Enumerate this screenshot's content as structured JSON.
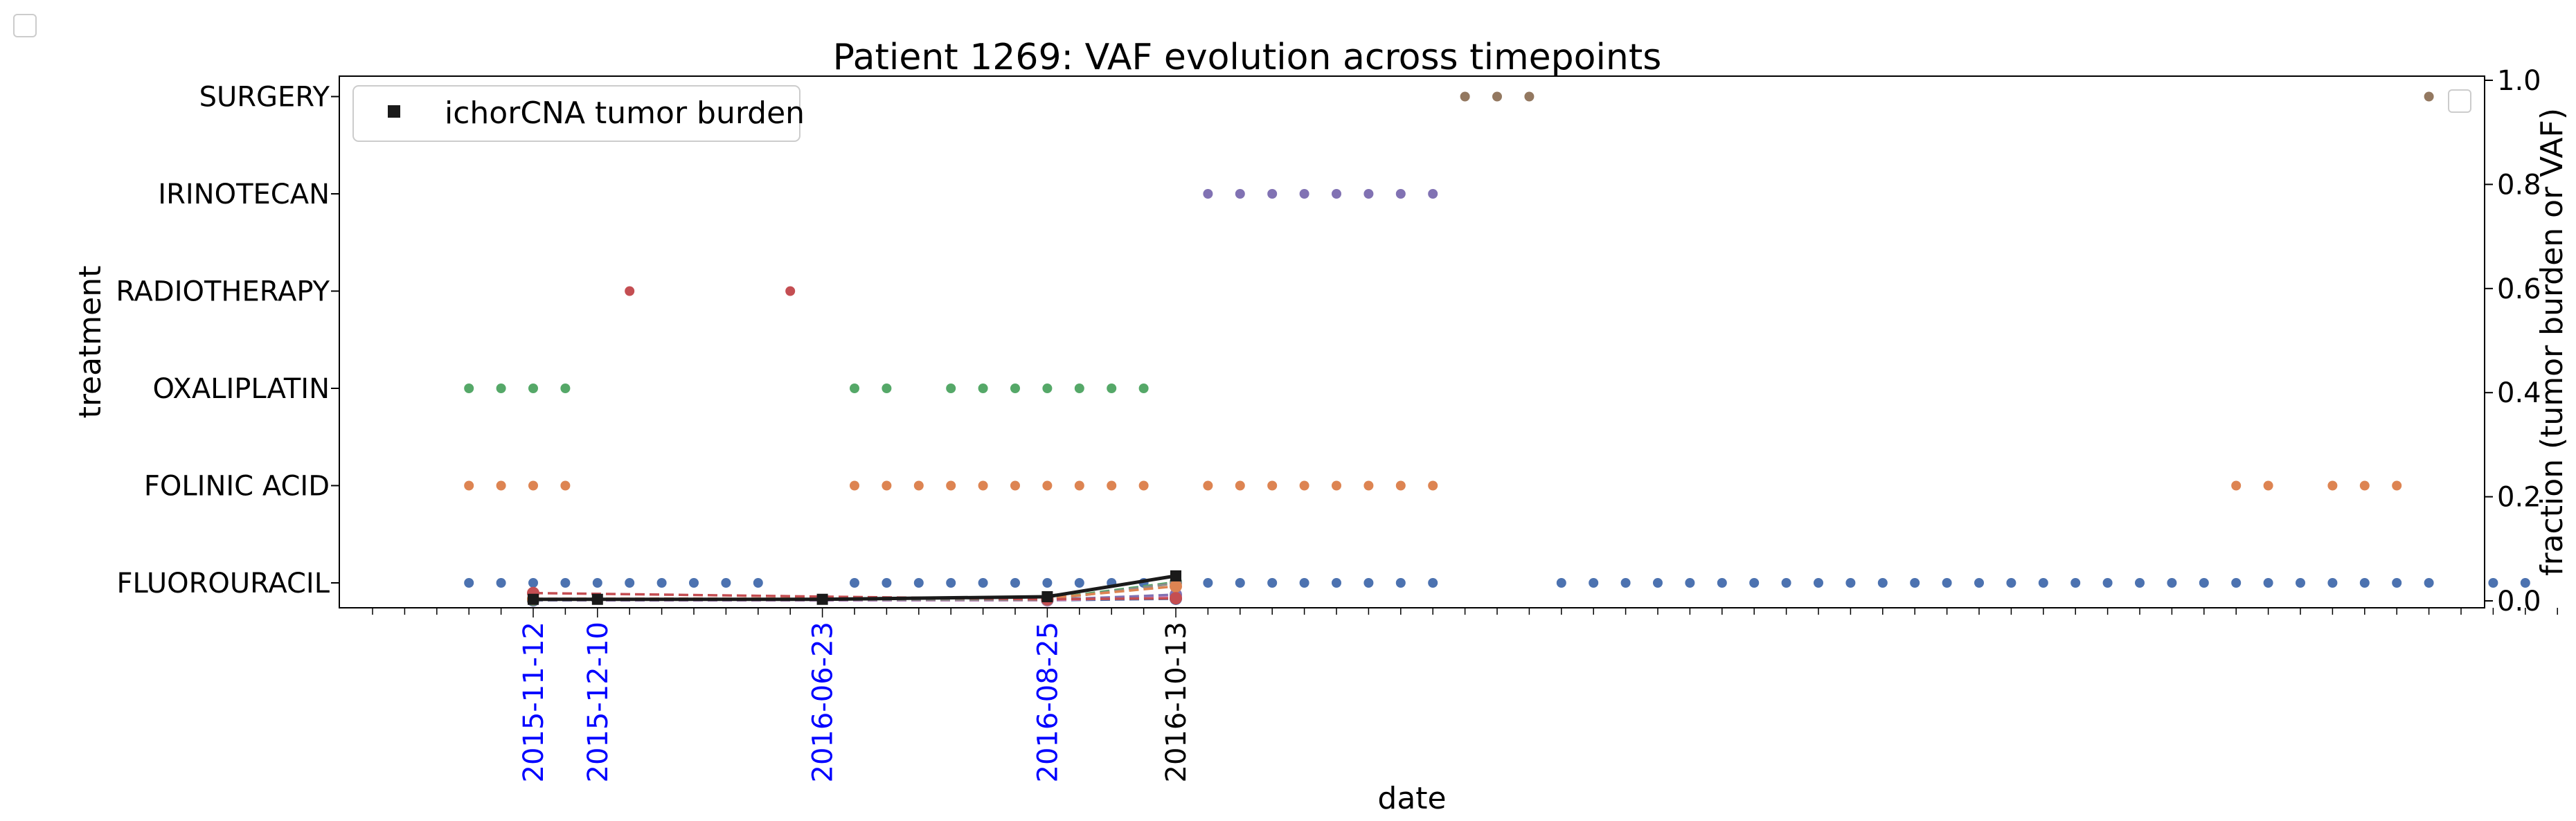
{
  "chart_data": {
    "type": "scatter",
    "title": "Patient 1269: VAF evolution across timepoints",
    "xlabel": "date",
    "ylabel_left": "treatment",
    "ylabel_right": "fraction (tumor burden or VAF)",
    "treatments": [
      "FLUOROURACIL",
      "FOLINIC ACID",
      "OXALIPLATIN",
      "RADIOTHERAPY",
      "IRINOTECAN",
      "SURGERY"
    ],
    "right_axis": {
      "ylim": [
        0.0,
        1.0
      ],
      "ticks": [
        "0.0",
        "0.2",
        "0.4",
        "0.6",
        "0.8",
        "1.0"
      ]
    },
    "x_tick_count": 69,
    "date_ticks": [
      {
        "label": "2015-11-12",
        "slot": 5,
        "color": "#0000ff"
      },
      {
        "label": "2015-12-10",
        "slot": 7,
        "color": "#0000ff"
      },
      {
        "label": "2016-06-23",
        "slot": 14,
        "color": "#0000ff"
      },
      {
        "label": "2016-08-25",
        "slot": 21,
        "color": "#0000ff"
      },
      {
        "label": "2016-10-13",
        "slot": 25,
        "color": "#000000"
      }
    ],
    "treatment_points": [
      {
        "treatment": "FLUOROURACIL",
        "color": "#4c72b0",
        "slots": [
          3,
          4,
          5,
          6,
          7,
          8,
          9,
          10,
          11,
          12,
          15,
          16,
          17,
          18,
          19,
          20,
          21,
          22,
          23,
          24,
          25,
          26,
          27,
          28,
          29,
          30,
          31,
          32,
          33,
          37,
          38,
          39,
          40,
          41,
          42,
          43,
          44,
          45,
          46,
          47,
          48,
          49,
          50,
          51,
          52,
          53,
          54,
          55,
          56,
          57,
          58,
          59,
          60,
          61,
          62,
          63,
          64,
          66,
          67
        ]
      },
      {
        "treatment": "FOLINIC ACID",
        "color": "#dd8452",
        "slots": [
          3,
          4,
          5,
          6,
          15,
          16,
          17,
          18,
          19,
          20,
          21,
          22,
          23,
          24,
          26,
          27,
          28,
          29,
          30,
          31,
          32,
          33,
          58,
          59,
          61,
          62,
          63
        ]
      },
      {
        "treatment": "OXALIPLATIN",
        "color": "#55a868",
        "slots": [
          3,
          4,
          5,
          6,
          15,
          16,
          18,
          19,
          20,
          21,
          22,
          23,
          24
        ]
      },
      {
        "treatment": "RADIOTHERAPY",
        "color": "#c44e52",
        "slots": [
          8,
          13
        ]
      },
      {
        "treatment": "IRINOTECAN",
        "color": "#8172b3",
        "slots": [
          26,
          27,
          28,
          29,
          30,
          31,
          32,
          33
        ]
      },
      {
        "treatment": "SURGERY",
        "color": "#937860",
        "slots": [
          34,
          35,
          36,
          64
        ]
      }
    ],
    "series": [
      {
        "name": "ichorCNA tumor burden",
        "color": "#1a1a1a",
        "marker": "square",
        "style": "solid",
        "points": [
          {
            "slot": 5,
            "value": 0.003
          },
          {
            "slot": 7,
            "value": 0.003
          },
          {
            "slot": 14,
            "value": 0.003
          },
          {
            "slot": 21,
            "value": 0.008
          },
          {
            "slot": 25,
            "value": 0.048
          }
        ]
      },
      {
        "color": "#c44e52",
        "marker": "circle",
        "style": "dashed",
        "points": [
          {
            "slot": 5,
            "value": 0.015
          },
          {
            "slot": 21,
            "value": 0.003
          },
          {
            "slot": 25,
            "value": 0.005
          }
        ]
      },
      {
        "color": "#dd8452",
        "marker": "circle",
        "style": "dashed",
        "points": [
          {
            "slot": 5,
            "value": 0.004
          },
          {
            "slot": 21,
            "value": 0.005
          },
          {
            "slot": 25,
            "value": 0.028
          }
        ]
      },
      {
        "color": "#8c8c8c",
        "marker": "circle",
        "style": "dashed",
        "points": [
          {
            "slot": 5,
            "value": 0.003
          },
          {
            "slot": 21,
            "value": 0.002
          },
          {
            "slot": 25,
            "value": 0.034
          }
        ]
      },
      {
        "color": "#55a868",
        "marker": "circle",
        "style": "dashed",
        "points": [
          {
            "slot": 5,
            "value": 0.002
          },
          {
            "slot": 21,
            "value": 0.004
          },
          {
            "slot": 25,
            "value": 0.036
          }
        ]
      },
      {
        "color": "#8172b3",
        "marker": "circle",
        "style": "dashed",
        "points": [
          {
            "slot": 5,
            "value": 0.001
          },
          {
            "slot": 21,
            "value": 0.002
          },
          {
            "slot": 25,
            "value": 0.012
          }
        ]
      },
      {
        "color": "#da8bc3",
        "marker": "circle",
        "style": "dashed",
        "points": [
          {
            "slot": 5,
            "value": 0.001
          },
          {
            "slot": 21,
            "value": 0.001
          },
          {
            "slot": 25,
            "value": 0.008
          }
        ]
      },
      {
        "color": "#4c72b0",
        "marker": "circle",
        "style": "dashed",
        "points": [
          {
            "slot": 5,
            "value": 0.001
          },
          {
            "slot": 21,
            "value": 0.001
          },
          {
            "slot": 25,
            "value": 0.004
          }
        ]
      }
    ],
    "legend": {
      "placement": "top-left",
      "entries": [
        "ichorCNA tumor burden"
      ]
    },
    "grid": false
  }
}
